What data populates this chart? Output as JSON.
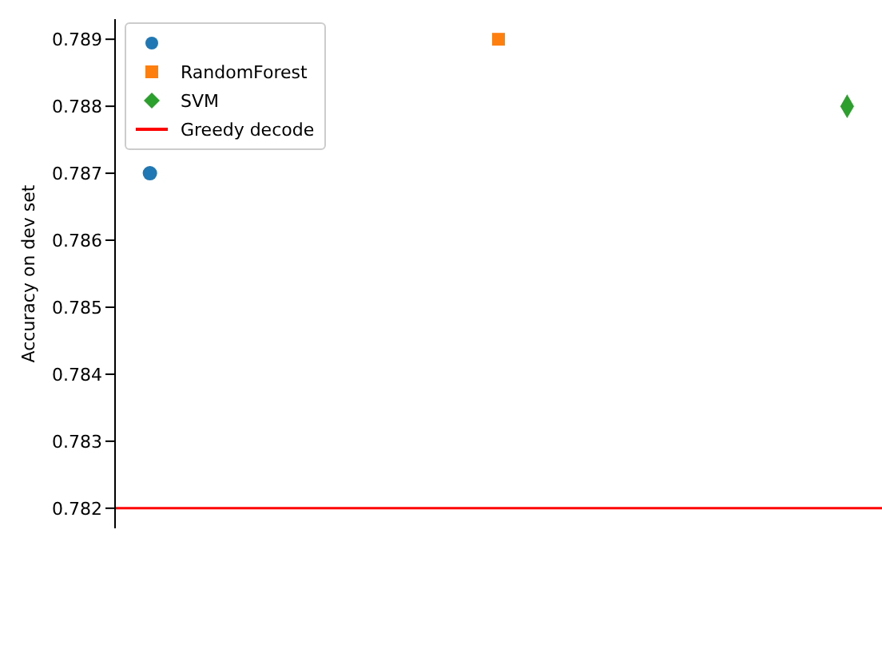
{
  "chart_data": {
    "type": "scatter",
    "ylabel": "Accuracy on dev set",
    "categories": [
      null,
      null,
      null
    ],
    "series": [
      {
        "color": "#1f77b4",
        "marker": "circle",
        "values": [
          0.787,
          null,
          null
        ]
      },
      {
        "name": "RandomForest",
        "color": "#ff7f0e",
        "marker": "square",
        "values": [
          null,
          0.789,
          null
        ]
      },
      {
        "name": "SVM",
        "color": "#2ca02c",
        "marker": "diamond",
        "values": [
          null,
          null,
          0.788
        ]
      }
    ],
    "ref_lines": [
      {
        "axis": "y",
        "value": 0.782,
        "label": "Greedy decode",
        "color": "#ff0000",
        "line_style": "solid"
      }
    ],
    "ylim": [
      0.7817,
      0.7893
    ],
    "yticks": [
      0.782,
      0.783,
      0.784,
      0.785,
      0.786,
      0.787,
      0.788,
      0.789
    ],
    "tick_labels": "y",
    "grid": false,
    "legend": "top left"
  }
}
